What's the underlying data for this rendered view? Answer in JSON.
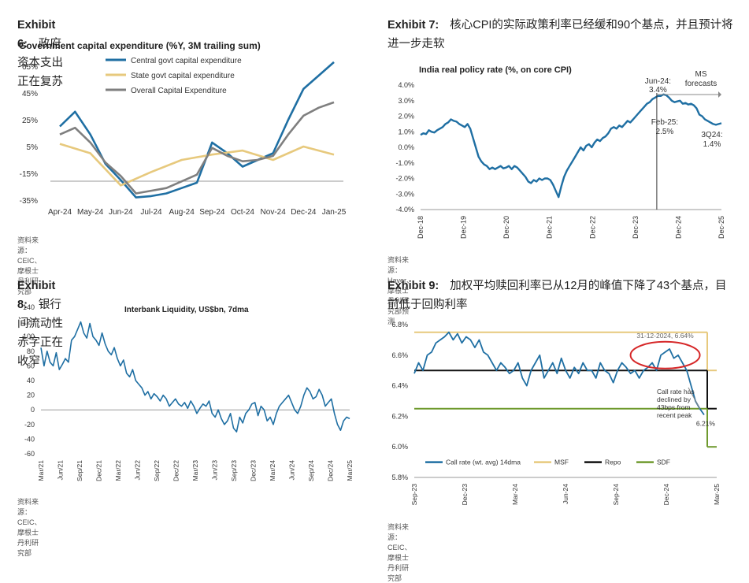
{
  "exhibits": [
    {
      "label": "Exhibit 6:",
      "title": "政府资本支出正在复苏",
      "source": "资料来源：CEIC、摩根士丹利研究部"
    },
    {
      "label": "Exhibit 7:",
      "title": "核心CPI的实际政策利率已经缓和90个基点，并且预计将进一步走软",
      "source": "资料来源：Haver、摩根士丹利研究部预测"
    },
    {
      "label": "Exhibit 8:",
      "title": "银行间流动性赤字正在收窄",
      "source": "资料来源：CEIC、摩根士丹利研究部"
    },
    {
      "label": "Exhibit 9:",
      "title": "加权平均赎回利率已从12月的峰值下降了43个基点，目前低于回购利率",
      "source": "资料来源：CEIC、摩根士丹利研究部"
    }
  ],
  "chart_data": [
    {
      "type": "line",
      "title": "Government capital expenditure (%Y, 3M trailing sum)",
      "categories": [
        "Apr-24",
        "May-24",
        "Jun-24",
        "Jul-24",
        "Aug-24",
        "Sep-24",
        "Oct-24",
        "Nov-24",
        "Dec-24",
        "Jan-25"
      ],
      "yticks": [
        "65%",
        "45%",
        "25%",
        "5%",
        "-15%",
        "-35%"
      ],
      "ylim": [
        -35,
        65
      ],
      "series": [
        {
          "name": "Central govt capital expenditure",
          "color": "#1f6fa3",
          "x": [
            0,
            0.5,
            1,
            1.5,
            2,
            2.5,
            3,
            3.5,
            4,
            4.5,
            5,
            5.5,
            6,
            6.5,
            7,
            7.5,
            8,
            8.5,
            9
          ],
          "values": [
            20,
            31,
            14,
            -8,
            -20,
            -33,
            -32,
            -30,
            -26,
            -22,
            8,
            0,
            -10,
            -5,
            0,
            25,
            48,
            58,
            68
          ]
        },
        {
          "name": "State govt capital expenditure",
          "color": "#e7c97d",
          "x": [
            0,
            1,
            2,
            3,
            4,
            5,
            6,
            7,
            8,
            9
          ],
          "values": [
            7,
            0,
            -24,
            -14,
            -5,
            -1,
            2,
            -5,
            5,
            -1
          ]
        },
        {
          "name": "Overall Capital Expenditure",
          "color": "#7f7f7f",
          "x": [
            0,
            0.5,
            1,
            1.5,
            2,
            2.5,
            3,
            3.5,
            4,
            4.5,
            5,
            5.5,
            6,
            6.5,
            7,
            7.5,
            8,
            8.5,
            9
          ],
          "values": [
            14,
            19,
            8,
            -7,
            -17,
            -30,
            -28,
            -26,
            -21,
            -16,
            4,
            -2,
            -6,
            -5,
            -2,
            14,
            28,
            34,
            38
          ]
        }
      ]
    },
    {
      "type": "line",
      "title": "India real policy rate (%, on core CPI)",
      "xticks": [
        "Dec-18",
        "Dec-19",
        "Dec-20",
        "Dec-21",
        "Dec-22",
        "Dec-23",
        "Dec-24",
        "Dec-25"
      ],
      "yticks": [
        "4.0%",
        "3.0%",
        "2.0%",
        "1.0%",
        "0.0%",
        "-1.0%",
        "-2.0%",
        "-3.0%",
        "-4.0%"
      ],
      "ylim": [
        -4,
        4
      ],
      "annotations": [
        "Jun-24:",
        "3.4%",
        "Feb-25:",
        "2.5%",
        "MS",
        "forecasts",
        "3Q24:",
        "1.4%"
      ],
      "series": [
        {
          "name": "India real policy rate",
          "color": "#1f6fa3",
          "values": [
            0.8,
            0.9,
            0.85,
            1.1,
            1.0,
            0.95,
            1.1,
            1.2,
            1.3,
            1.5,
            1.6,
            1.8,
            1.7,
            1.65,
            1.5,
            1.4,
            1.3,
            1.5,
            1.2,
            0.6,
            0.0,
            -0.6,
            -0.9,
            -1.1,
            -1.2,
            -1.4,
            -1.3,
            -1.4,
            -1.3,
            -1.2,
            -1.35,
            -1.3,
            -1.2,
            -1.4,
            -1.2,
            -1.3,
            -1.5,
            -1.7,
            -1.9,
            -2.2,
            -2.3,
            -2.1,
            -2.2,
            -2.0,
            -2.1,
            -2.0,
            -2.0,
            -2.1,
            -2.4,
            -2.8,
            -3.2,
            -2.5,
            -1.9,
            -1.5,
            -1.2,
            -0.9,
            -0.6,
            -0.3,
            0.0,
            -0.2,
            0.1,
            0.2,
            0.0,
            0.3,
            0.5,
            0.4,
            0.6,
            0.7,
            0.9,
            1.2,
            1.3,
            1.2,
            1.4,
            1.3,
            1.5,
            1.7,
            1.6,
            1.8,
            2.0,
            2.2,
            2.4,
            2.6,
            2.8,
            2.9,
            3.1,
            3.2,
            3.3,
            3.3,
            3.4,
            3.35,
            3.2,
            3.0,
            2.9,
            2.95,
            3.0,
            2.8,
            2.85,
            2.75,
            2.8,
            2.7,
            2.5,
            2.1,
            2.0,
            1.8,
            1.7,
            1.6,
            1.5,
            1.45,
            1.5,
            1.55
          ]
        }
      ]
    },
    {
      "type": "line",
      "title": "Interbank Liquidity, US$bn, 7dma",
      "xticks": [
        "Mar/21",
        "Jun/21",
        "Sep/21",
        "Dec/21",
        "Mar/22",
        "Jun/22",
        "Sep/22",
        "Dec/22",
        "Mar/23",
        "Jun/23",
        "Sep/23",
        "Dec/23",
        "Mar/24",
        "Jun/24",
        "Sep/24",
        "Dec/24",
        "Mar/25"
      ],
      "yticks": [
        "140",
        "120",
        "100",
        "80",
        "60",
        "40",
        "20",
        "0",
        "-20",
        "-40",
        "-60"
      ],
      "ylim": [
        -60,
        140
      ],
      "series": [
        {
          "name": "Interbank Liquidity",
          "color": "#1f6fa3",
          "values": [
            85,
            60,
            80,
            65,
            60,
            78,
            55,
            62,
            70,
            65,
            95,
            100,
            110,
            120,
            105,
            98,
            118,
            100,
            95,
            88,
            105,
            90,
            80,
            75,
            85,
            70,
            60,
            68,
            50,
            45,
            55,
            40,
            35,
            30,
            20,
            25,
            15,
            22,
            18,
            12,
            20,
            15,
            5,
            10,
            15,
            8,
            5,
            10,
            2,
            12,
            5,
            -5,
            2,
            8,
            5,
            12,
            -5,
            -10,
            0,
            -12,
            -20,
            -15,
            -5,
            -25,
            -30,
            -10,
            -18,
            -5,
            0,
            8,
            10,
            -8,
            5,
            0,
            -15,
            -10,
            -20,
            -5,
            5,
            10,
            15,
            20,
            10,
            0,
            -5,
            5,
            20,
            30,
            25,
            15,
            18,
            28,
            20,
            5,
            10,
            15,
            -5,
            -20,
            -28,
            -15,
            -10,
            -12
          ]
        }
      ]
    },
    {
      "type": "line",
      "title": "",
      "xticks": [
        "Sep-23",
        "Dec-23",
        "Mar-24",
        "Jun-24",
        "Sep-24",
        "Dec-24",
        "Mar-25"
      ],
      "yticks": [
        "6.8%",
        "6.6%",
        "6.4%",
        "6.2%",
        "6.0%",
        "5.8%"
      ],
      "ylim": [
        5.8,
        6.8
      ],
      "annotations": [
        "31-12-2024, 6.64%",
        "Call rate has",
        "declined by",
        "43bps from",
        "recent peak",
        "6.21%"
      ],
      "series": [
        {
          "name": "Call rate (wt. avg) 14dma",
          "color": "#1f6fa3",
          "values": [
            6.48,
            6.55,
            6.5,
            6.6,
            6.62,
            6.68,
            6.7,
            6.72,
            6.75,
            6.7,
            6.74,
            6.68,
            6.72,
            6.7,
            6.65,
            6.7,
            6.62,
            6.6,
            6.55,
            6.5,
            6.55,
            6.52,
            6.48,
            6.5,
            6.55,
            6.45,
            6.4,
            6.5,
            6.55,
            6.6,
            6.45,
            6.5,
            6.55,
            6.48,
            6.58,
            6.5,
            6.45,
            6.52,
            6.48,
            6.55,
            6.5,
            6.5,
            6.45,
            6.55,
            6.5,
            6.48,
            6.42,
            6.5,
            6.55,
            6.52,
            6.48,
            6.5,
            6.45,
            6.5,
            6.52,
            6.55,
            6.5,
            6.6,
            6.62,
            6.64,
            6.58,
            6.6,
            6.55,
            6.5,
            6.4,
            6.3,
            6.25,
            6.21
          ]
        },
        {
          "name": "MSF",
          "color": "#e7c97d",
          "values": [
            6.75,
            6.75
          ]
        },
        {
          "name": "Repo",
          "color": "#111111",
          "values": [
            6.5,
            6.5
          ]
        },
        {
          "name": "SDF",
          "color": "#6f9a2e",
          "values": [
            6.25,
            6.25
          ]
        }
      ]
    }
  ]
}
